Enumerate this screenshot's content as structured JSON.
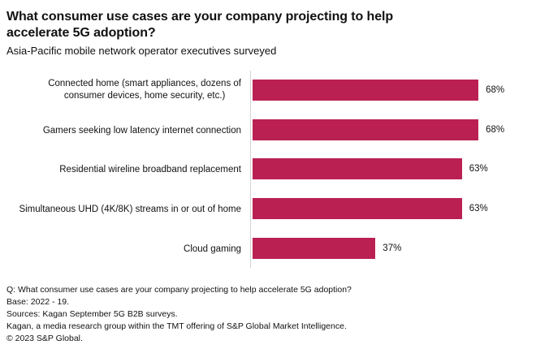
{
  "header": {
    "title": "What consumer use cases are your company projecting to help accelerate 5G adoption?",
    "subtitle": "Asia-Pacific mobile network operator executives surveyed"
  },
  "chart_data": {
    "type": "bar",
    "orientation": "horizontal",
    "title": "What consumer use cases are your company projecting to help accelerate 5G adoption?",
    "subtitle": "Asia-Pacific mobile network operator executives surveyed",
    "categories": [
      "Connected home (smart appliances, dozens of\nconsumer devices, home security, etc.)",
      "Gamers seeking low latency internet connection",
      "Residential wireline broadband replacement",
      "Simultaneous UHD (4K/8K) streams in or out of home",
      "Cloud gaming"
    ],
    "values": [
      68,
      68,
      63,
      63,
      37
    ],
    "value_labels": [
      "68%",
      "68%",
      "63%",
      "63%",
      "37%"
    ],
    "xlabel": "",
    "ylabel": "",
    "xlim": [
      0,
      83
    ],
    "grid": false,
    "legend": false,
    "bar_color": "#ba2152",
    "axis_line_color": "#d3d3d3",
    "text_color": "#111111"
  },
  "footer": {
    "lines": [
      "Q: What consumer use cases are your company projecting to help accelerate 5G adoption?",
      "Base: 2022 - 19.",
      "Sources: Kagan September 5G B2B surveys.",
      "Kagan, a media research group within the TMT offering of S&P Global Market Intelligence.",
      "© 2023 S&P Global."
    ]
  }
}
